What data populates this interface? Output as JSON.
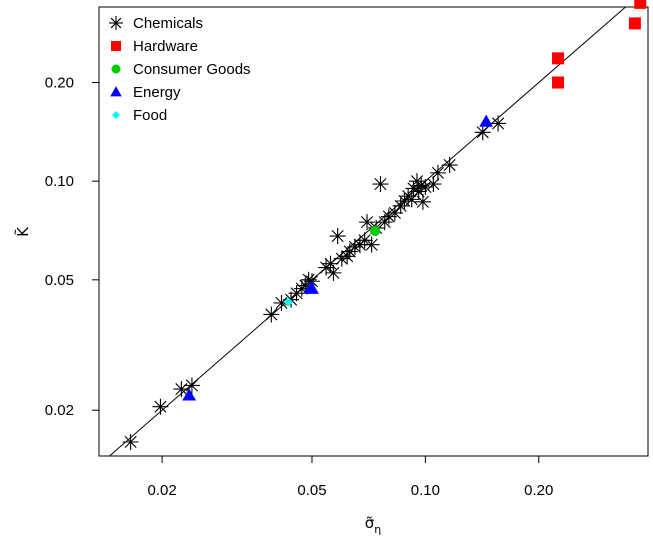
{
  "chart_data": {
    "type": "scatter",
    "xlabel": "σ̃",
    "xlabel_sub": "η",
    "ylabel": "K̃",
    "x_scale": "log",
    "y_scale": "log",
    "xlim": [
      0.0136,
      0.39
    ],
    "ylim": [
      0.0145,
      0.34
    ],
    "x_ticks": [
      0.02,
      0.05,
      0.1,
      0.2
    ],
    "x_tick_labels": [
      "0.02",
      "0.05",
      "0.10",
      "0.20"
    ],
    "y_ticks": [
      0.02,
      0.05,
      0.1,
      0.2
    ],
    "y_tick_labels": [
      "0.02",
      "0.05",
      "0.10",
      "0.20"
    ],
    "grid": false,
    "legend_position": "top-left",
    "reference_line": "y = x",
    "series": [
      {
        "name": "Chemicals",
        "marker": "asterisk",
        "color": "#000000",
        "points": [
          [
            0.0165,
            0.016
          ],
          [
            0.0198,
            0.0205
          ],
          [
            0.0225,
            0.0232
          ],
          [
            0.024,
            0.0238
          ],
          [
            0.039,
            0.0392
          ],
          [
            0.0415,
            0.0425
          ],
          [
            0.044,
            0.0435
          ],
          [
            0.0455,
            0.0455
          ],
          [
            0.047,
            0.047
          ],
          [
            0.048,
            0.048
          ],
          [
            0.049,
            0.05
          ],
          [
            0.05,
            0.0495
          ],
          [
            0.0545,
            0.0545
          ],
          [
            0.056,
            0.056
          ],
          [
            0.057,
            0.0525
          ],
          [
            0.0585,
            0.068
          ],
          [
            0.06,
            0.058
          ],
          [
            0.062,
            0.059
          ],
          [
            0.063,
            0.061
          ],
          [
            0.065,
            0.063
          ],
          [
            0.067,
            0.064
          ],
          [
            0.069,
            0.066
          ],
          [
            0.072,
            0.064
          ],
          [
            0.07,
            0.075
          ],
          [
            0.074,
            0.072
          ],
          [
            0.076,
            0.098
          ],
          [
            0.078,
            0.075
          ],
          [
            0.08,
            0.078
          ],
          [
            0.083,
            0.08
          ],
          [
            0.086,
            0.084
          ],
          [
            0.088,
            0.087
          ],
          [
            0.09,
            0.09
          ],
          [
            0.092,
            0.088
          ],
          [
            0.093,
            0.095
          ],
          [
            0.095,
            0.1
          ],
          [
            0.096,
            0.093
          ],
          [
            0.0975,
            0.097
          ],
          [
            0.0985,
            0.0865
          ],
          [
            0.1,
            0.096
          ],
          [
            0.105,
            0.098
          ],
          [
            0.108,
            0.106
          ],
          [
            0.116,
            0.112
          ],
          [
            0.142,
            0.141
          ],
          [
            0.156,
            0.15
          ]
        ]
      },
      {
        "name": "Hardware",
        "marker": "square",
        "color": "#ff0000",
        "points": [
          [
            0.225,
            0.2
          ],
          [
            0.225,
            0.237
          ],
          [
            0.36,
            0.303
          ],
          [
            0.372,
            0.35
          ]
        ]
      },
      {
        "name": "Consumer Goods",
        "marker": "circle",
        "color": "#00cd00",
        "points": [
          [
            0.0735,
            0.0705
          ]
        ]
      },
      {
        "name": "Energy",
        "marker": "triangle",
        "color": "#0000ff",
        "points": [
          [
            0.0236,
            0.0222
          ],
          [
            0.0495,
            0.047
          ],
          [
            0.05,
            0.047
          ],
          [
            0.145,
            0.152
          ]
        ]
      },
      {
        "name": "Food",
        "marker": "diamond",
        "color": "#00ffff",
        "points": [
          [
            0.0433,
            0.0428
          ]
        ]
      }
    ]
  }
}
